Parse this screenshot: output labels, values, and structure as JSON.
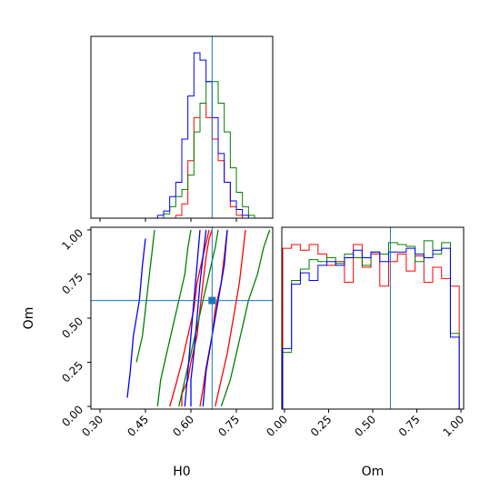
{
  "chart_data": {
    "type": "corner",
    "parameters": [
      "H0",
      "Om"
    ],
    "truths": {
      "H0": 0.67,
      "Om": 0.6
    },
    "colors": {
      "red": "#ff0000",
      "green": "#008000",
      "blue": "#0000ff",
      "truth": "#1f77b4"
    },
    "h0_axis": {
      "label": "H0",
      "lim": [
        0.27,
        0.87
      ],
      "ticks": [
        "0.30",
        "0.45",
        "0.60",
        "0.75"
      ],
      "tick_values": [
        0.3,
        0.45,
        0.6,
        0.75
      ]
    },
    "om_axis": {
      "label": "Om",
      "lim": [
        -0.015,
        1.015
      ],
      "ticks": [
        "0.00",
        "0.25",
        "0.50",
        "0.75",
        "1.00"
      ],
      "tick_values": [
        0,
        0.25,
        0.5,
        0.75,
        1.0
      ]
    },
    "h0_histograms": {
      "bins": [
        0.27,
        0.29,
        0.31,
        0.33,
        0.35,
        0.37,
        0.39,
        0.41,
        0.43,
        0.45,
        0.47,
        0.49,
        0.51,
        0.53,
        0.55,
        0.57,
        0.59,
        0.61,
        0.63,
        0.65,
        0.67,
        0.69,
        0.71,
        0.73,
        0.75,
        0.77,
        0.79,
        0.81,
        0.83,
        0.85,
        0.87
      ],
      "series": [
        {
          "color": "red",
          "counts": [
            0,
            0,
            0,
            0,
            0,
            0,
            0,
            0,
            0,
            0,
            0,
            0,
            0,
            0,
            2,
            10,
            40,
            70,
            80,
            70,
            55,
            40,
            25,
            8,
            2,
            0,
            0,
            0,
            0,
            0
          ]
        },
        {
          "color": "green",
          "counts": [
            0,
            0,
            0,
            0,
            0,
            0,
            0,
            0,
            0,
            0,
            0,
            0,
            3,
            8,
            15,
            20,
            30,
            60,
            80,
            95,
            95,
            80,
            60,
            35,
            18,
            8,
            2,
            0,
            0,
            0
          ]
        },
        {
          "color": "blue",
          "counts": [
            0,
            0,
            0,
            0,
            0,
            0,
            0,
            0,
            0,
            0,
            0,
            2,
            5,
            15,
            25,
            55,
            85,
            115,
            110,
            95,
            70,
            45,
            25,
            12,
            6,
            2,
            0,
            0,
            0,
            0
          ]
        }
      ]
    },
    "om_histograms": {
      "bins": [
        -0.01,
        0.04,
        0.09,
        0.14,
        0.19,
        0.24,
        0.29,
        0.34,
        0.39,
        0.44,
        0.49,
        0.54,
        0.59,
        0.64,
        0.69,
        0.74,
        0.79,
        0.84,
        0.89,
        0.94,
        0.99
      ],
      "series": [
        {
          "color": "red",
          "counts": [
            0.85,
            0.87,
            0.84,
            0.87,
            0.82,
            0.76,
            0.78,
            0.67,
            0.87,
            0.75,
            0.82,
            0.65,
            0.78,
            0.82,
            0.73,
            0.81,
            0.67,
            0.75,
            0.69,
            0.65
          ]
        },
        {
          "color": "green",
          "counts": [
            0.3,
            0.68,
            0.74,
            0.79,
            0.78,
            0.8,
            0.77,
            0.82,
            0.8,
            0.76,
            0.83,
            0.82,
            0.88,
            0.87,
            0.86,
            0.78,
            0.89,
            0.82,
            0.88,
            0.4
          ]
        },
        {
          "color": "blue",
          "counts": [
            0.32,
            0.66,
            0.72,
            0.68,
            0.76,
            0.78,
            0.76,
            0.8,
            0.84,
            0.8,
            0.83,
            0.78,
            0.83,
            0.83,
            0.85,
            0.82,
            0.8,
            0.84,
            0.85,
            0.38
          ]
        }
      ]
    },
    "contours_2d": [
      {
        "color": "red",
        "lines": [
          [
            [
              0.57,
              0.0
            ],
            [
              0.57,
              0.07
            ],
            [
              0.59,
              0.15
            ],
            [
              0.6,
              0.25
            ],
            [
              0.62,
              0.4
            ],
            [
              0.63,
              0.55
            ],
            [
              0.64,
              0.7
            ],
            [
              0.65,
              0.85
            ],
            [
              0.66,
              0.95
            ],
            [
              0.67,
              1.0
            ]
          ],
          [
            [
              0.63,
              0.0
            ],
            [
              0.64,
              0.1
            ],
            [
              0.65,
              0.22
            ],
            [
              0.67,
              0.4
            ],
            [
              0.68,
              0.55
            ],
            [
              0.7,
              0.7
            ],
            [
              0.71,
              0.85
            ],
            [
              0.72,
              1.0
            ]
          ],
          [
            [
              0.53,
              0.0
            ],
            [
              0.55,
              0.12
            ],
            [
              0.57,
              0.25
            ],
            [
              0.59,
              0.4
            ],
            [
              0.61,
              0.55
            ],
            [
              0.62,
              0.7
            ],
            [
              0.64,
              0.85
            ],
            [
              0.66,
              1.0
            ]
          ],
          [
            [
              0.68,
              0.0
            ],
            [
              0.7,
              0.15
            ],
            [
              0.72,
              0.3
            ],
            [
              0.74,
              0.5
            ],
            [
              0.76,
              0.7
            ],
            [
              0.77,
              0.85
            ],
            [
              0.78,
              1.0
            ]
          ]
        ]
      },
      {
        "color": "green",
        "lines": [
          [
            [
              0.49,
              0.0
            ],
            [
              0.5,
              0.15
            ],
            [
              0.52,
              0.3
            ],
            [
              0.54,
              0.45
            ],
            [
              0.56,
              0.6
            ],
            [
              0.58,
              0.75
            ],
            [
              0.59,
              0.9
            ],
            [
              0.6,
              1.0
            ]
          ],
          [
            [
              0.7,
              0.0
            ],
            [
              0.73,
              0.15
            ],
            [
              0.75,
              0.3
            ],
            [
              0.77,
              0.45
            ],
            [
              0.79,
              0.6
            ],
            [
              0.82,
              0.75
            ],
            [
              0.84,
              0.9
            ],
            [
              0.86,
              1.0
            ]
          ],
          [
            [
              0.42,
              0.25
            ],
            [
              0.44,
              0.4
            ],
            [
              0.45,
              0.55
            ],
            [
              0.46,
              0.7
            ],
            [
              0.47,
              0.85
            ],
            [
              0.48,
              1.0
            ]
          ],
          [
            [
              0.56,
              0.0
            ],
            [
              0.58,
              0.15
            ],
            [
              0.6,
              0.3
            ],
            [
              0.62,
              0.45
            ],
            [
              0.64,
              0.6
            ],
            [
              0.66,
              0.75
            ],
            [
              0.68,
              0.9
            ],
            [
              0.69,
              1.0
            ]
          ]
        ]
      },
      {
        "color": "blue",
        "lines": [
          [
            [
              0.6,
              0.0
            ],
            [
              0.6,
              0.15
            ],
            [
              0.61,
              0.3
            ],
            [
              0.62,
              0.5
            ],
            [
              0.63,
              0.7
            ],
            [
              0.64,
              0.85
            ],
            [
              0.65,
              1.0
            ]
          ],
          [
            [
              0.64,
              0.0
            ],
            [
              0.65,
              0.2
            ],
            [
              0.67,
              0.4
            ],
            [
              0.69,
              0.6
            ],
            [
              0.71,
              0.8
            ],
            [
              0.72,
              1.0
            ]
          ],
          [
            [
              0.39,
              0.05
            ],
            [
              0.4,
              0.2
            ],
            [
              0.41,
              0.4
            ],
            [
              0.43,
              0.6
            ],
            [
              0.44,
              0.8
            ],
            [
              0.45,
              0.95
            ]
          ],
          [
            [
              0.58,
              0.0
            ],
            [
              0.59,
              0.2
            ],
            [
              0.6,
              0.4
            ],
            [
              0.61,
              0.6
            ],
            [
              0.62,
              0.8
            ],
            [
              0.63,
              1.0
            ]
          ]
        ]
      }
    ]
  }
}
